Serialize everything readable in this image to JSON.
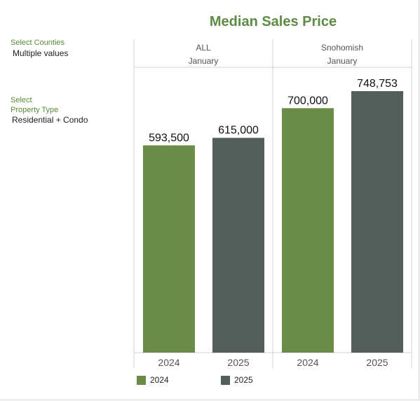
{
  "filters": {
    "counties": {
      "label": "Select Counties",
      "value": "Multiple values"
    },
    "property_type": {
      "label": "Select\nProperty Type",
      "value": "Residential + Condo"
    }
  },
  "colors": {
    "y2024": "#6b8c48",
    "y2025": "#535d59",
    "title": "#5f8a45",
    "filter_label": "#5a8a3a",
    "grid": "#d0d0d0"
  },
  "chart_data": {
    "type": "bar",
    "title": "Median Sales Price",
    "panels": [
      {
        "region": "ALL",
        "month": "January"
      },
      {
        "region": "Snohomish",
        "month": "January"
      }
    ],
    "categories": [
      "2024",
      "2025"
    ],
    "series": [
      {
        "panel": "ALL",
        "values": [
          593500,
          615000
        ],
        "labels": [
          "593,500",
          "615,000"
        ]
      },
      {
        "panel": "Snohomish",
        "values": [
          700000,
          748753
        ],
        "labels": [
          "700,000",
          "748,753"
        ]
      }
    ],
    "ylim": [
      0,
      850000
    ],
    "legend": [
      {
        "name": "2024",
        "color": "#6b8c48"
      },
      {
        "name": "2025",
        "color": "#535d59"
      }
    ],
    "legend_position": "bottom"
  }
}
